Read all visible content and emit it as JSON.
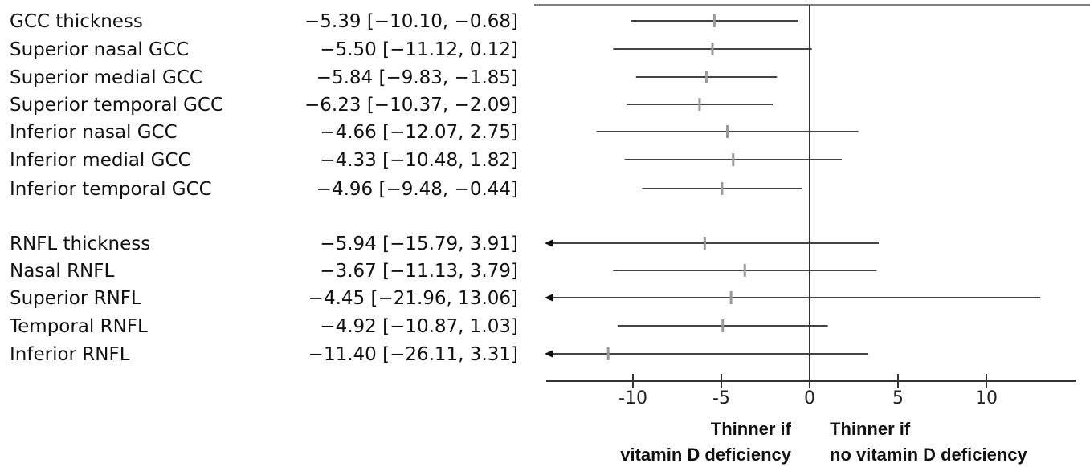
{
  "chart_data": {
    "type": "forest",
    "rows": [
      {
        "label": "GCC thickness",
        "estimate": -5.39,
        "ci": [
          -10.1,
          -0.68
        ],
        "text": "−5.39 [−10.10, −0.68]"
      },
      {
        "label": "Superior nasal GCC",
        "estimate": -5.5,
        "ci": [
          -11.12,
          0.12
        ],
        "text": "−5.50 [−11.12, 0.12]"
      },
      {
        "label": "Superior medial GCC",
        "estimate": -5.84,
        "ci": [
          -9.83,
          -1.85
        ],
        "text": "−5.84 [−9.83, −1.85]"
      },
      {
        "label": "Superior temporal GCC",
        "estimate": -6.23,
        "ci": [
          -10.37,
          -2.09
        ],
        "text": "−6.23 [−10.37, −2.09]"
      },
      {
        "label": "Inferior nasal GCC",
        "estimate": -4.66,
        "ci": [
          -12.07,
          2.75
        ],
        "text": "−4.66 [−12.07, 2.75]"
      },
      {
        "label": "Inferior medial GCC",
        "estimate": -4.33,
        "ci": [
          -10.48,
          1.82
        ],
        "text": "−4.33 [−10.48, 1.82]"
      },
      {
        "label": "Inferior temporal GCC",
        "estimate": -4.96,
        "ci": [
          -9.48,
          -0.44
        ],
        "text": "−4.96 [−9.48, −0.44]"
      },
      {
        "label": "RNFL thickness",
        "estimate": -5.94,
        "ci": [
          -15.79,
          3.91
        ],
        "text": "−5.94 [−15.79, 3.91]"
      },
      {
        "label": "Nasal RNFL",
        "estimate": -3.67,
        "ci": [
          -11.13,
          3.79
        ],
        "text": "−3.67 [−11.13, 3.79]"
      },
      {
        "label": "Superior RNFL",
        "estimate": -4.45,
        "ci": [
          -21.96,
          13.06
        ],
        "text": "−4.45 [−21.96, 13.06]"
      },
      {
        "label": "Temporal RNFL",
        "estimate": -4.92,
        "ci": [
          -10.87,
          1.03
        ],
        "text": "−4.92 [−10.87, 1.03]"
      },
      {
        "label": "Inferior RNFL",
        "estimate": -11.4,
        "ci": [
          -26.11,
          3.31
        ],
        "text": "−11.40 [−26.11, 3.31]"
      }
    ],
    "xlim": [
      -14.5,
      15.5
    ],
    "xticks": [
      -10,
      -5,
      0,
      5,
      10
    ],
    "xtick_labels": [
      "-10",
      "-5",
      "0",
      "5",
      "10"
    ],
    "reference_line": 0,
    "annotations": {
      "left": [
        "Thinner if",
        "vitamin D deficiency"
      ],
      "right": [
        "Thinner if",
        "no vitamin D deficiency"
      ]
    }
  }
}
